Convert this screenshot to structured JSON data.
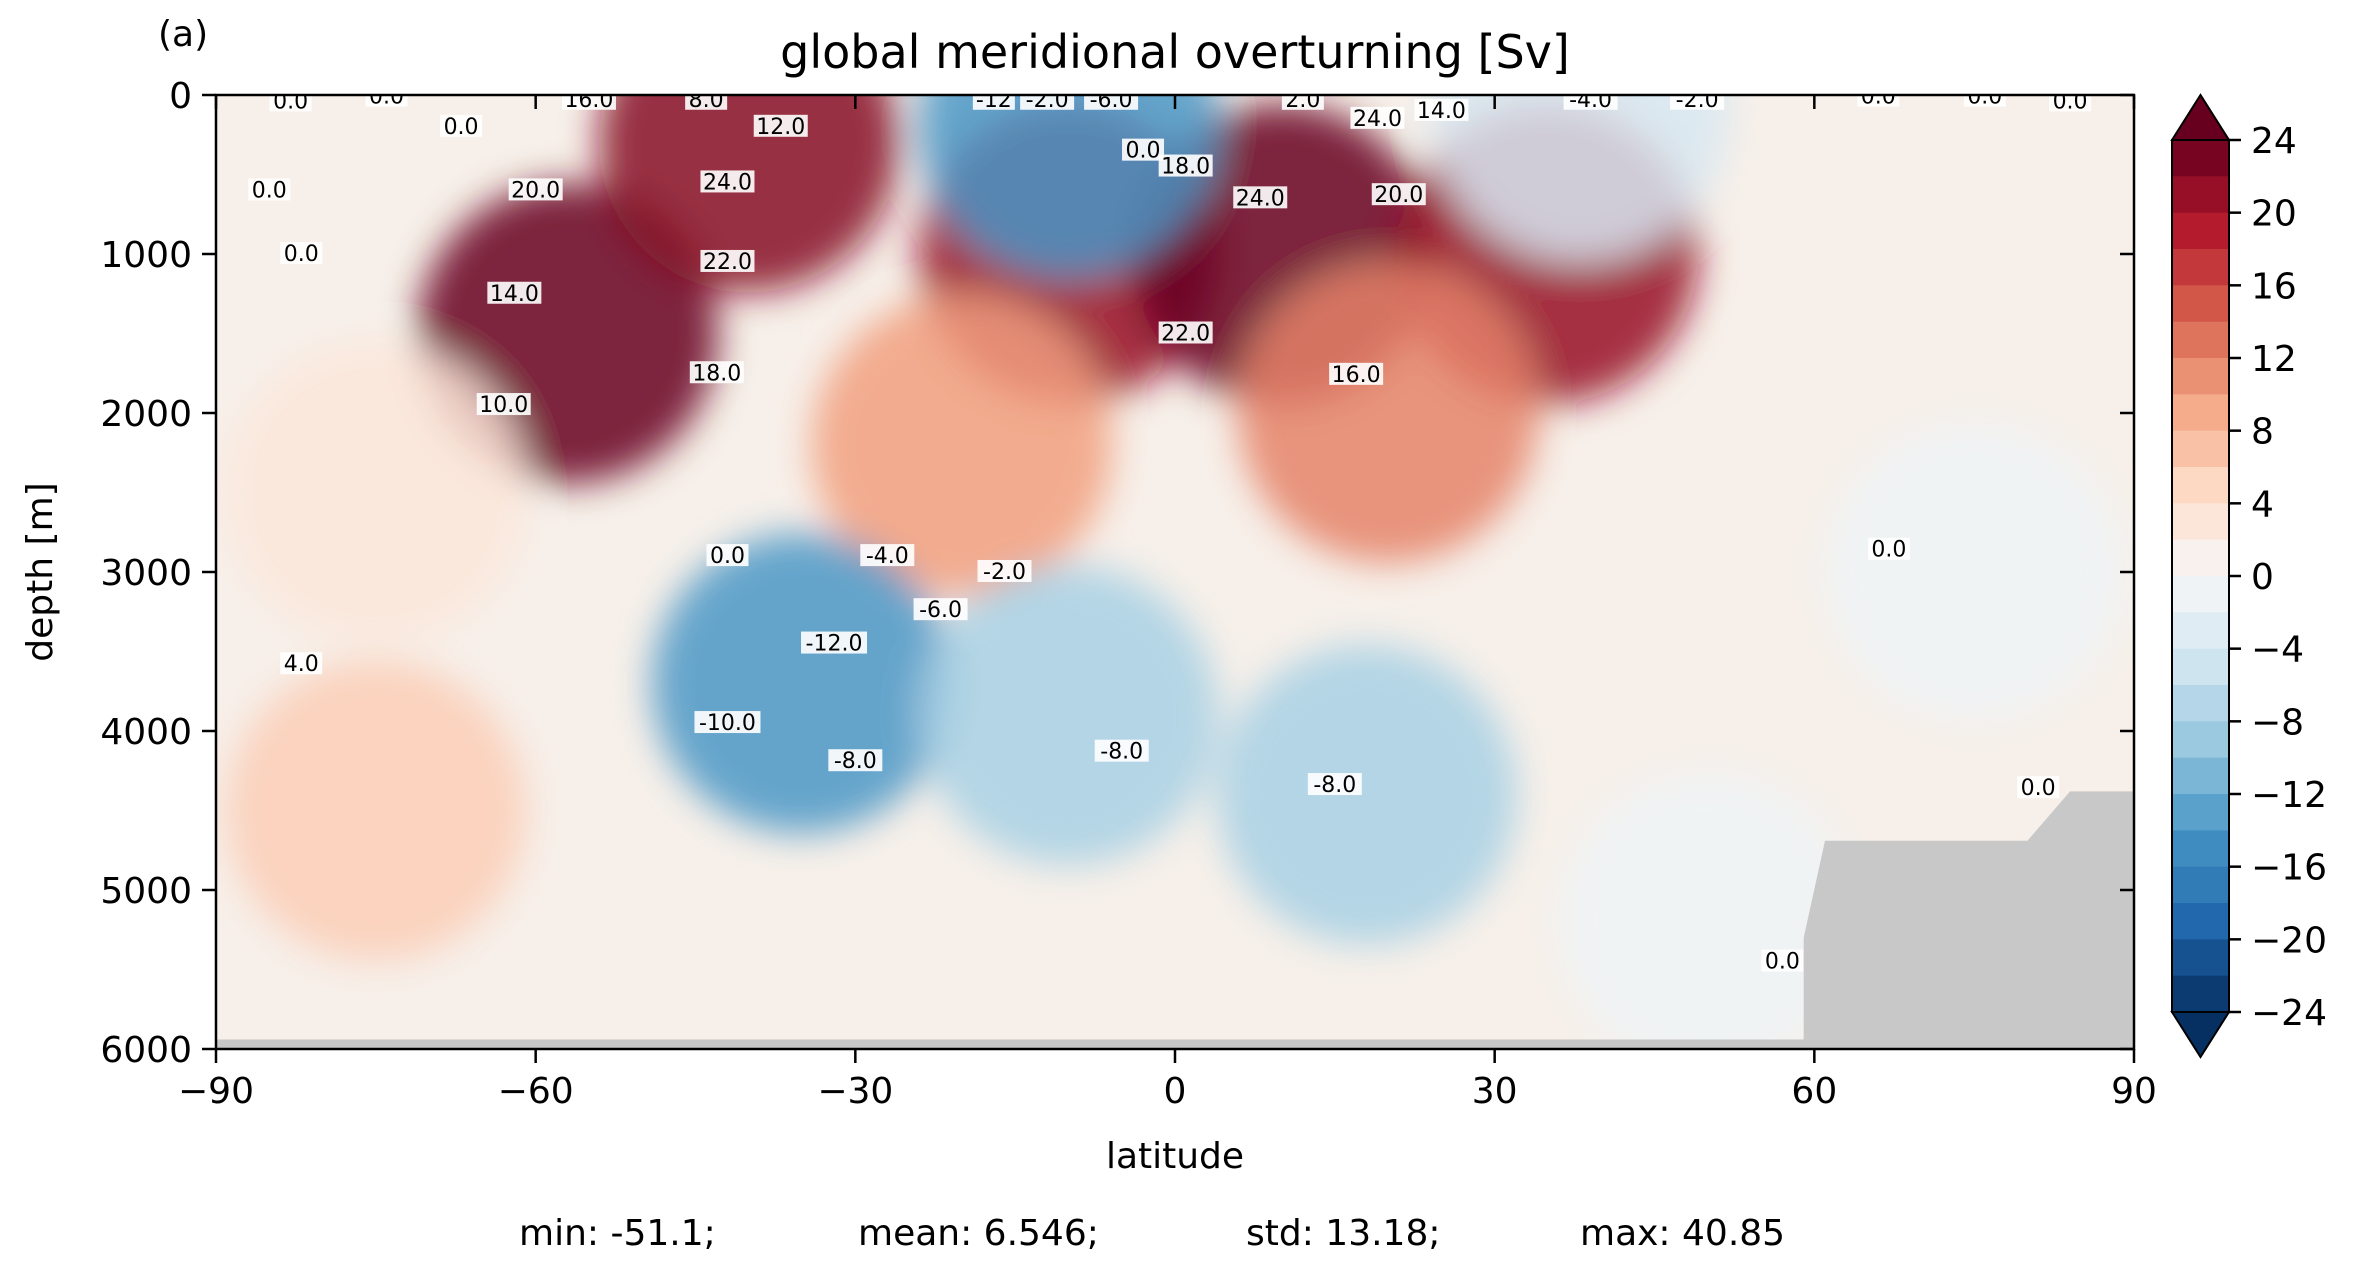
{
  "chart_data": {
    "type": "heatmap",
    "panel_label": "(a)",
    "title": "global meridional overturning [Sv]",
    "xlabel": "latitude",
    "ylabel": "depth [m]",
    "xlim": [
      -90,
      90
    ],
    "ylim": [
      6000,
      0
    ],
    "x_ticks": [
      -90,
      -60,
      -30,
      0,
      30,
      60,
      90
    ],
    "x_tick_labels": [
      "−90",
      "−60",
      "−30",
      "0",
      "30",
      "60",
      "90"
    ],
    "y_ticks": [
      0,
      1000,
      2000,
      3000,
      4000,
      5000,
      6000
    ],
    "y_tick_labels": [
      "0",
      "1000",
      "2000",
      "3000",
      "4000",
      "5000",
      "6000"
    ],
    "colorbar": {
      "cmap": "RdBu_r",
      "levels_min": -24,
      "levels_max": 24,
      "level_step": 2,
      "ticks": [
        24,
        20,
        16,
        12,
        8,
        4,
        0,
        -4,
        -8,
        -12,
        -16,
        -20,
        -24
      ],
      "tick_labels": [
        "24",
        "20",
        "16",
        "12",
        "8",
        "4",
        "0",
        "−4",
        "−8",
        "−12",
        "−16",
        "−20",
        "−24"
      ],
      "extend": "both"
    },
    "masked_color": "#c8c8c8",
    "cells": [
      {
        "lat": -57,
        "depth": 1500,
        "value": 26
      },
      {
        "lat": -40,
        "depth": 300,
        "value": 22
      },
      {
        "lat": -10,
        "depth": 1000,
        "value": 21
      },
      {
        "lat": 10,
        "depth": 1000,
        "value": 25
      },
      {
        "lat": 35,
        "depth": 1000,
        "value": 21
      },
      {
        "lat": 20,
        "depth": 2000,
        "value": 12
      },
      {
        "lat": -20,
        "depth": 2200,
        "value": 10
      },
      {
        "lat": -35,
        "depth": 3700,
        "value": -14
      },
      {
        "lat": -10,
        "depth": 3900,
        "value": -8
      },
      {
        "lat": 18,
        "depth": 4400,
        "value": -8
      },
      {
        "lat": -75,
        "depth": 4500,
        "value": 6
      },
      {
        "lat": -75,
        "depth": 2500,
        "value": 3
      },
      {
        "lat": -10,
        "depth": 200,
        "value": -14
      },
      {
        "lat": 38,
        "depth": 100,
        "value": -4
      },
      {
        "lat": 50,
        "depth": 5200,
        "value": -1
      },
      {
        "lat": 75,
        "depth": 3000,
        "value": -1
      }
    ],
    "contour_labels": [
      {
        "text": "0.0",
        "lat": -83,
        "depth": 40
      },
      {
        "text": "0.0",
        "lat": -74,
        "depth": 10
      },
      {
        "text": "0.0",
        "lat": -67,
        "depth": 200
      },
      {
        "text": "0.0",
        "lat": -85,
        "depth": 600
      },
      {
        "text": "0.0",
        "lat": -82,
        "depth": 1000
      },
      {
        "text": "16.0",
        "lat": -55,
        "depth": 30
      },
      {
        "text": "8.0",
        "lat": -44,
        "depth": 30
      },
      {
        "text": "12.0",
        "lat": -37,
        "depth": 200
      },
      {
        "text": "20.0",
        "lat": -60,
        "depth": 600
      },
      {
        "text": "24.0",
        "lat": -42,
        "depth": 550
      },
      {
        "text": "22.0",
        "lat": -42,
        "depth": 1050
      },
      {
        "text": "14.0",
        "lat": -62,
        "depth": 1250
      },
      {
        "text": "10.0",
        "lat": -63,
        "depth": 1950
      },
      {
        "text": "18.0",
        "lat": -43,
        "depth": 1750
      },
      {
        "text": "4.0",
        "lat": -82,
        "depth": 3580
      },
      {
        "text": "-12",
        "lat": -17,
        "depth": 30
      },
      {
        "text": "-2.0",
        "lat": -12,
        "depth": 30
      },
      {
        "text": "-6.0",
        "lat": -6,
        "depth": 30
      },
      {
        "text": "0.0",
        "lat": -3,
        "depth": 350
      },
      {
        "text": "18.0",
        "lat": 1,
        "depth": 450
      },
      {
        "text": "24.0",
        "lat": 8,
        "depth": 650
      },
      {
        "text": "2.0",
        "lat": 12,
        "depth": 30
      },
      {
        "text": "24.0",
        "lat": 19,
        "depth": 150
      },
      {
        "text": "14.0",
        "lat": 25,
        "depth": 100
      },
      {
        "text": "20.0",
        "lat": 21,
        "depth": 630
      },
      {
        "text": "22.0",
        "lat": 1,
        "depth": 1500
      },
      {
        "text": "16.0",
        "lat": 17,
        "depth": 1760
      },
      {
        "text": "-4.0",
        "lat": 39,
        "depth": 30
      },
      {
        "text": "-2.0",
        "lat": 49,
        "depth": 30
      },
      {
        "text": "0.0",
        "lat": 66,
        "depth": 10
      },
      {
        "text": "0.0",
        "lat": 76,
        "depth": 10
      },
      {
        "text": "0.0",
        "lat": 84,
        "depth": 40
      },
      {
        "text": "0.0",
        "lat": -42,
        "depth": 2900
      },
      {
        "text": "-4.0",
        "lat": -27,
        "depth": 2900
      },
      {
        "text": "-2.0",
        "lat": -16,
        "depth": 3000
      },
      {
        "text": "-6.0",
        "lat": -22,
        "depth": 3240
      },
      {
        "text": "-12.0",
        "lat": -32,
        "depth": 3450
      },
      {
        "text": "-10.0",
        "lat": -42,
        "depth": 3950
      },
      {
        "text": "-8.0",
        "lat": -30,
        "depth": 4190
      },
      {
        "text": "-8.0",
        "lat": -5,
        "depth": 4130
      },
      {
        "text": "-8.0",
        "lat": 15,
        "depth": 4340
      },
      {
        "text": "0.0",
        "lat": 67,
        "depth": 2860
      },
      {
        "text": "0.0",
        "lat": 81,
        "depth": 4360
      },
      {
        "text": "0.0",
        "lat": 57,
        "depth": 5450
      }
    ]
  },
  "stats": {
    "min": "min: -51.1;",
    "mean": "mean: 6.546;",
    "std": "std: 13.18;",
    "max": "max: 40.85"
  }
}
